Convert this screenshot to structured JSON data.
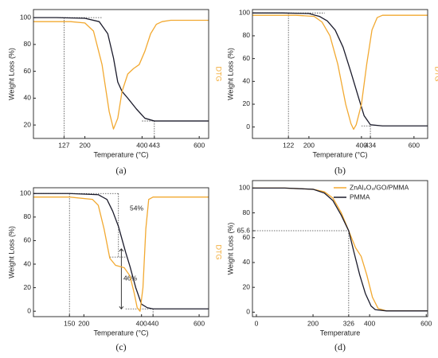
{
  "chart_data": [
    {
      "type": "line",
      "panel_label": "(a)",
      "x_label": "Temperature (°C)",
      "y_label": "Weight Loss (%)",
      "y2_label": "DTG",
      "xlim": [
        20,
        633
      ],
      "xticks": [
        127,
        200,
        400,
        443,
        600
      ],
      "ylim": [
        10,
        106
      ],
      "yticks": [
        20,
        40,
        60,
        80,
        100
      ],
      "series": [
        {
          "color": "#1b1b2b",
          "x": [
            20,
            100,
            200,
            250,
            280,
            300,
            315,
            330,
            350,
            380,
            410,
            443,
            500,
            633
          ],
          "values": [
            100,
            100,
            99.5,
            97,
            88,
            70,
            52,
            45,
            40,
            32,
            25,
            23,
            23,
            23
          ]
        },
        {
          "color": "#f2a931",
          "axis": "y2",
          "x": [
            20,
            150,
            200,
            230,
            260,
            285,
            300,
            315,
            330,
            350,
            370,
            390,
            410,
            430,
            450,
            470,
            500,
            633
          ],
          "values": [
            97,
            97,
            96,
            90,
            65,
            30,
            17,
            25,
            45,
            58,
            62,
            65,
            75,
            88,
            95,
            97,
            98,
            98
          ]
        }
      ],
      "reference_lines": [
        {
          "x": [
            20,
            260
          ],
          "y": [
            100,
            100
          ]
        },
        {
          "x": [
            127,
            127
          ],
          "y": [
            100,
            10
          ]
        },
        {
          "x": [
            400,
            443
          ],
          "y": [
            23,
            23
          ]
        },
        {
          "x": [
            443,
            443
          ],
          "y": [
            23,
            10
          ]
        }
      ]
    },
    {
      "type": "line",
      "panel_label": "(b)",
      "x_label": "Temperature (°C)",
      "y_label": "Weight Loss (%)",
      "y2_label": "DTG",
      "xlim": [
        -15,
        652
      ],
      "xticks": [
        122,
        200,
        400,
        434,
        600
      ],
      "ylim": [
        -10,
        103
      ],
      "yticks": [
        0,
        20,
        40,
        60,
        80,
        100
      ],
      "series": [
        {
          "color": "#1b1b2b",
          "x": [
            -15,
            100,
            200,
            240,
            270,
            300,
            330,
            360,
            390,
            410,
            434,
            480,
            652
          ],
          "values": [
            100,
            100,
            99.5,
            97,
            93,
            85,
            70,
            48,
            25,
            10,
            2,
            1,
            1
          ]
        },
        {
          "color": "#f2a931",
          "axis": "y2",
          "x": [
            -15,
            150,
            220,
            250,
            280,
            310,
            340,
            360,
            370,
            380,
            400,
            420,
            440,
            460,
            480,
            652
          ],
          "values": [
            98,
            98,
            97,
            92,
            80,
            55,
            20,
            3,
            -2,
            2,
            20,
            55,
            85,
            96,
            98,
            98
          ]
        }
      ],
      "reference_lines": [
        {
          "x": [
            -15,
            260
          ],
          "y": [
            100,
            100
          ]
        },
        {
          "x": [
            122,
            122
          ],
          "y": [
            100,
            -10
          ]
        },
        {
          "x": [
            400,
            434
          ],
          "y": [
            1,
            1
          ]
        },
        {
          "x": [
            434,
            434
          ],
          "y": [
            1,
            -10
          ]
        }
      ]
    },
    {
      "type": "line",
      "panel_label": "(c)",
      "x_label": "Temperature (°C)",
      "y_label": "Weight Loss (%)",
      "y2_label": "DTG",
      "xlim": [
        25,
        633
      ],
      "xticks": [
        150,
        200,
        400,
        440,
        600
      ],
      "ylim": [
        -4.6,
        104.9
      ],
      "yticks": [
        0,
        20,
        40,
        60,
        80,
        100
      ],
      "series": [
        {
          "color": "#1b1b2b",
          "x": [
            25,
            150,
            250,
            280,
            300,
            320,
            345,
            360,
            380,
            400,
            420,
            440,
            500,
            633
          ],
          "values": [
            100,
            100,
            99,
            95,
            85,
            72,
            50,
            38,
            20,
            6,
            3,
            2,
            2,
            2
          ]
        },
        {
          "color": "#f2a931",
          "axis": "y2",
          "x": [
            25,
            150,
            230,
            250,
            270,
            290,
            310,
            340,
            360,
            375,
            385,
            395,
            405,
            415,
            425,
            440,
            633
          ],
          "values": [
            97,
            97,
            95,
            90,
            70,
            45,
            39,
            37,
            30,
            15,
            3,
            0,
            20,
            70,
            95,
            97,
            97
          ]
        }
      ],
      "reference_lines": [
        {
          "x": [
            25,
            320
          ],
          "y": [
            100,
            100
          ]
        },
        {
          "x": [
            150,
            150
          ],
          "y": [
            100,
            -4.6
          ]
        },
        {
          "x": [
            320,
            320
          ],
          "y": [
            100,
            46
          ]
        },
        {
          "x": [
            290,
            350
          ],
          "y": [
            46,
            46
          ]
        },
        {
          "x": [
            345,
            440
          ],
          "y": [
            2,
            2
          ]
        },
        {
          "x": [
            440,
            440
          ],
          "y": [
            2,
            -4.6
          ]
        }
      ],
      "arrows": [
        {
          "x": [
            330,
            330
          ],
          "y": [
            46,
            53
          ]
        },
        {
          "x": [
            330,
            330
          ],
          "y": [
            46,
            2
          ]
        }
      ],
      "annotations": [
        "54%",
        "46%"
      ]
    },
    {
      "type": "line",
      "panel_label": "(d)",
      "x_label": "Temperature",
      "y_label": "Weight Loss (%)",
      "xlim": [
        -14,
        605
      ],
      "xticks": [
        0,
        200,
        326,
        400,
        600
      ],
      "ylim": [
        -3.6,
        106
      ],
      "yticks": [
        0,
        20,
        40,
        60,
        65.6,
        80,
        100
      ],
      "legend": "upper right",
      "series": [
        {
          "name": "ZnAl₂O₄/GO/PMMA",
          "color": "#f2a931",
          "x": [
            -14,
            100,
            200,
            240,
            270,
            300,
            326,
            350,
            370,
            390,
            410,
            430,
            460,
            605
          ],
          "values": [
            100,
            100,
            99,
            97,
            92,
            80,
            65.6,
            52,
            45,
            30,
            12,
            3,
            1,
            1
          ]
        },
        {
          "name": "PMMA",
          "color": "#1b1b2b",
          "x": [
            -14,
            100,
            200,
            240,
            270,
            300,
            326,
            345,
            365,
            385,
            405,
            420,
            460,
            605
          ],
          "values": [
            100,
            100,
            99,
            96,
            90,
            78,
            65.6,
            48,
            30,
            15,
            5,
            2,
            1,
            1
          ]
        }
      ],
      "reference_lines": [
        {
          "x": [
            -14,
            326
          ],
          "y": [
            65.6,
            65.6
          ]
        },
        {
          "x": [
            326,
            326
          ],
          "y": [
            65.6,
            -3.6
          ]
        }
      ]
    }
  ]
}
